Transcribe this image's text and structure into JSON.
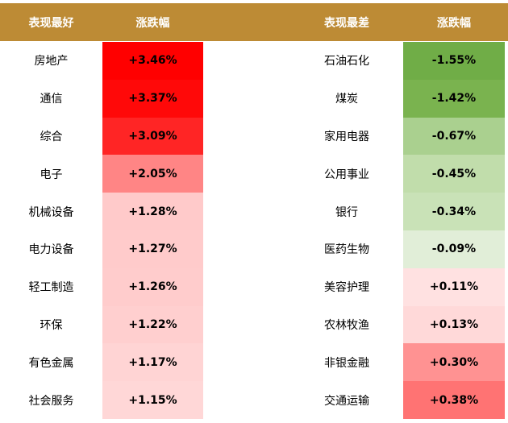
{
  "header": {
    "color": "#bd8b35",
    "cells": [
      "表现最好",
      "涨跌幅",
      "表现最差",
      "涨跌幅"
    ]
  },
  "rows": [
    {
      "best": "房地产",
      "best_change": "+3.46%",
      "best_color": "#ff0000",
      "worst": "石油石化",
      "worst_change": "-1.55%",
      "worst_color": "#70ad47"
    },
    {
      "best": "通信",
      "best_change": "+3.37%",
      "best_color": "#ff0909",
      "worst": "煤炭",
      "worst_change": "-1.42%",
      "worst_color": "#7ab34f"
    },
    {
      "best": "综合",
      "best_change": "+3.09%",
      "best_color": "#ff2525",
      "worst": "家用电器",
      "worst_change": "-0.67%",
      "worst_color": "#aad08f"
    },
    {
      "best": "电子",
      "best_change": "+2.05%",
      "best_color": "#ff8585",
      "worst": "公用事业",
      "worst_change": "-0.45%",
      "worst_color": "#c1ddab"
    },
    {
      "best": "机械设备",
      "best_change": "+1.28%",
      "best_color": "#ffcaca",
      "worst": "银行",
      "worst_change": "-0.34%",
      "worst_color": "#c9e2b7"
    },
    {
      "best": "电力设备",
      "best_change": "+1.27%",
      "best_color": "#ffcbcb",
      "worst": "医药生物",
      "worst_change": "-0.09%",
      "worst_color": "#e1eed8"
    },
    {
      "best": "轻工制造",
      "best_change": "+1.26%",
      "best_color": "#ffcccc",
      "worst": "美容护理",
      "worst_change": "+0.11%",
      "worst_color": "#ffe1e1"
    },
    {
      "best": "环保",
      "best_change": "+1.22%",
      "best_color": "#ffcfcf",
      "worst": "农林牧渔",
      "worst_change": "+0.13%",
      "worst_color": "#ffd9d9"
    },
    {
      "best": "有色金属",
      "best_change": "+1.17%",
      "best_color": "#ffd4d4",
      "worst": "非银金融",
      "worst_change": "+0.30%",
      "worst_color": "#ff9292"
    },
    {
      "best": "社会服务",
      "best_change": "+1.15%",
      "best_color": "#ffd7d7",
      "worst": "交通运输",
      "worst_change": "+0.38%",
      "worst_color": "#ff7373"
    }
  ]
}
